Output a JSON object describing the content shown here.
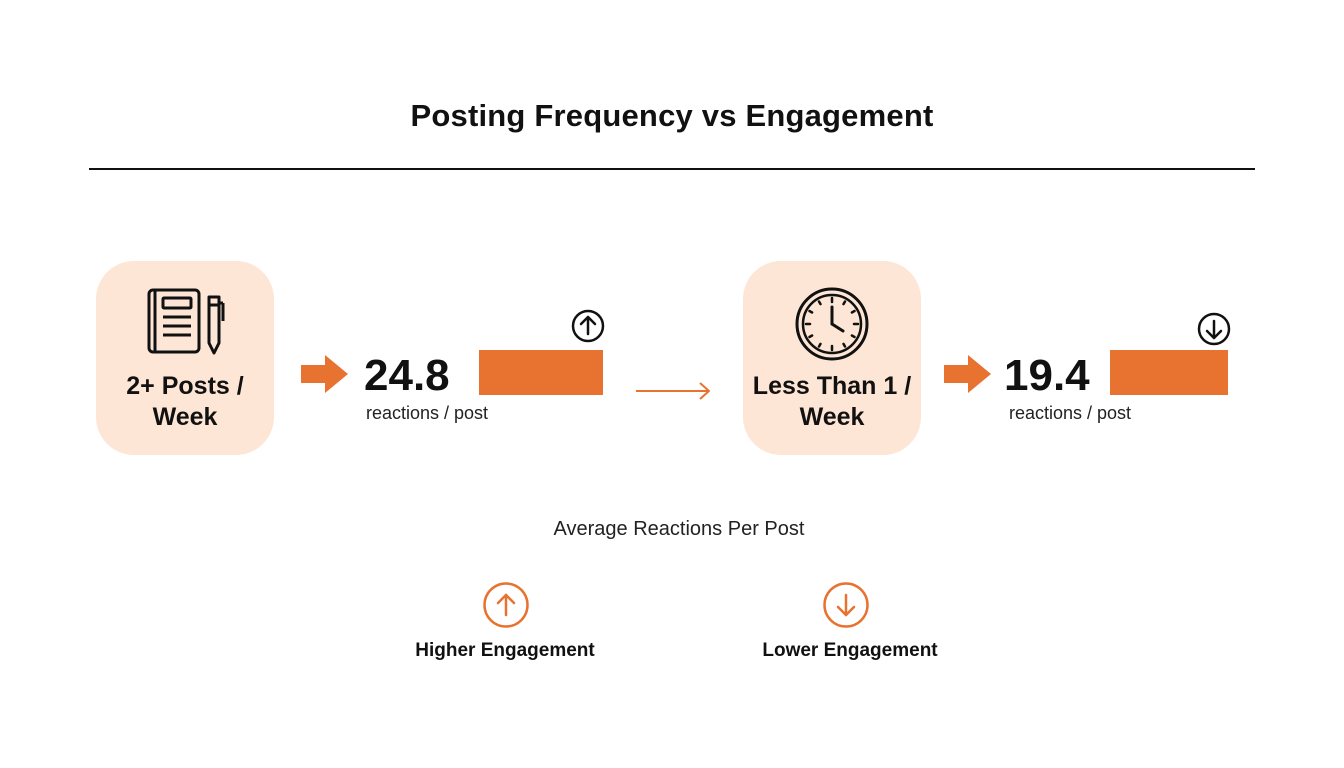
{
  "title": "Posting Frequency vs Engagement",
  "accent_color": "#e8722f",
  "card_color": "#fde6d5",
  "groups": [
    {
      "label": "2+ Posts / Week",
      "icon": "notebook-pen-icon",
      "value": "24.8",
      "unit": "reactions / post",
      "trend": "up",
      "trend_icon": "arrow-up-circle-icon"
    },
    {
      "label": "Less Than 1 / Week",
      "icon": "clock-icon",
      "value": "19.4",
      "unit": "reactions / post",
      "trend": "down",
      "trend_icon": "arrow-down-circle-icon"
    }
  ],
  "caption": "Average Reactions Per Post",
  "legend": [
    {
      "icon": "arrow-up-circle-icon",
      "label": "Higher Engagement"
    },
    {
      "icon": "arrow-down-circle-icon",
      "label": "Lower Engagement"
    }
  ]
}
